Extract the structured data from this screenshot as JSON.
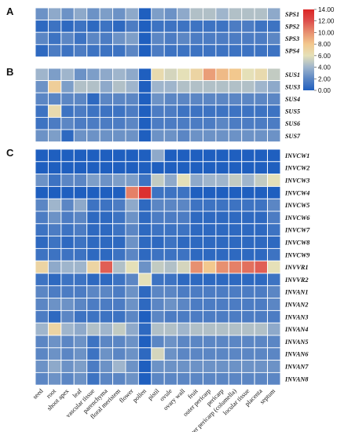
{
  "chart_data": {
    "type": "heatmap",
    "colorscale": {
      "min": 0,
      "max": 14,
      "ticks": [
        "14.00",
        "12.00",
        "10.00",
        "8.00",
        "6.00",
        "4.00",
        "2.00",
        "0.00"
      ],
      "colors": [
        "#1f5fbf",
        "#5b86c4",
        "#9fb5cc",
        "#e5e0b8",
        "#f2c88e",
        "#e79070",
        "#dd4f4c",
        "#dc2626"
      ]
    },
    "tissues": [
      "seed",
      "root",
      "shoot apex",
      "leaf",
      "vascular tissue",
      "parenchyma",
      "floral meristem",
      "flower",
      "pollen",
      "pistil",
      "ovule",
      "ovary wall",
      "fruit",
      "outer pericarp",
      "pericarp",
      "inner pericarp (columella)",
      "locular tissue",
      "placenta",
      "septum"
    ],
    "panels": [
      {
        "label": "A",
        "rows": [
          {
            "gene": "SPS1",
            "values": [
              2.5,
              3.5,
              2.5,
              3.5,
              2.5,
              3.0,
              2.5,
              3.5,
              0.0,
              3.0,
              2.5,
              3.5,
              4.5,
              4.5,
              4.0,
              4.5,
              4.5,
              4.5,
              3.5
            ]
          },
          {
            "gene": "SPS2",
            "values": [
              0.5,
              1.0,
              0.5,
              1.0,
              0.5,
              1.0,
              0.5,
              1.5,
              0.0,
              1.0,
              1.0,
              1.0,
              1.0,
              1.0,
              1.0,
              1.5,
              1.5,
              1.0,
              1.0
            ]
          },
          {
            "gene": "SPS3",
            "values": [
              2.0,
              1.0,
              2.0,
              1.0,
              2.0,
              1.5,
              2.5,
              3.0,
              0.0,
              2.0,
              1.5,
              2.0,
              1.5,
              1.5,
              1.5,
              1.5,
              1.5,
              1.5,
              2.0
            ]
          },
          {
            "gene": "SPS4",
            "values": [
              0.5,
              1.5,
              1.0,
              1.5,
              1.0,
              1.0,
              1.0,
              2.0,
              0.0,
              1.5,
              1.0,
              1.0,
              1.0,
              1.0,
              1.0,
              1.0,
              1.0,
              1.0,
              1.0
            ]
          }
        ]
      },
      {
        "label": "B",
        "rows": [
          {
            "gene": "SUS1",
            "values": [
              4.0,
              3.0,
              4.0,
              2.5,
              3.0,
              3.5,
              4.0,
              3.5,
              0.0,
              6.5,
              5.5,
              6.0,
              7.0,
              9.5,
              8.5,
              8.0,
              6.0,
              6.5,
              5.0
            ]
          },
          {
            "gene": "SUS3",
            "values": [
              2.5,
              7.5,
              3.0,
              4.5,
              4.5,
              3.5,
              4.5,
              4.0,
              0.0,
              4.0,
              4.0,
              4.5,
              4.5,
              4.5,
              4.5,
              4.5,
              4.5,
              4.0,
              3.5
            ]
          },
          {
            "gene": "SUS4",
            "values": [
              2.0,
              2.0,
              2.0,
              2.0,
              0.5,
              2.0,
              2.0,
              2.0,
              0.0,
              2.5,
              2.0,
              2.0,
              2.0,
              2.0,
              2.0,
              2.0,
              2.0,
              2.0,
              2.0
            ]
          },
          {
            "gene": "SUS5",
            "values": [
              1.0,
              6.5,
              1.0,
              1.5,
              1.0,
              1.0,
              1.0,
              1.5,
              0.0,
              1.5,
              1.5,
              1.0,
              1.0,
              1.0,
              1.0,
              1.0,
              1.0,
              1.0,
              1.0
            ]
          },
          {
            "gene": "SUS6",
            "values": [
              1.0,
              1.5,
              2.0,
              1.5,
              1.5,
              1.5,
              1.5,
              2.0,
              0.0,
              1.5,
              1.5,
              1.5,
              1.5,
              1.5,
              2.0,
              1.5,
              1.5,
              1.5,
              1.5
            ]
          },
          {
            "gene": "SUS7",
            "values": [
              2.5,
              3.0,
              0.5,
              2.5,
              2.5,
              2.5,
              2.5,
              2.5,
              0.0,
              2.5,
              2.5,
              2.0,
              2.5,
              2.5,
              2.5,
              2.5,
              2.5,
              2.5,
              2.5
            ]
          }
        ]
      },
      {
        "label": "C",
        "rows": [
          {
            "gene": "INVCW1",
            "values": [
              0.0,
              0.0,
              0.0,
              0.0,
              0.0,
              0.0,
              0.0,
              0.0,
              0.0,
              3.5,
              0.0,
              0.0,
              0.0,
              0.0,
              0.0,
              0.0,
              0.0,
              0.0,
              0.0
            ]
          },
          {
            "gene": "INVCW2",
            "values": [
              0.0,
              0.0,
              0.0,
              0.0,
              0.0,
              0.0,
              0.0,
              0.0,
              0.0,
              0.0,
              0.0,
              0.0,
              0.0,
              0.0,
              0.0,
              0.0,
              0.0,
              0.0,
              0.0
            ]
          },
          {
            "gene": "INVCW3",
            "values": [
              2.5,
              1.0,
              2.0,
              2.0,
              3.0,
              2.5,
              3.0,
              3.0,
              1.0,
              5.0,
              3.5,
              6.0,
              3.5,
              4.0,
              4.0,
              5.0,
              4.0,
              5.0,
              6.0
            ]
          },
          {
            "gene": "INVCW4",
            "values": [
              0.0,
              0.0,
              0.0,
              0.0,
              0.0,
              0.0,
              0.0,
              10.5,
              13.5,
              1.0,
              1.0,
              1.0,
              0.0,
              0.0,
              0.0,
              0.0,
              0.0,
              0.0,
              0.0
            ]
          },
          {
            "gene": "INVCW5",
            "values": [
              2.0,
              4.0,
              2.0,
              3.5,
              1.0,
              1.0,
              1.5,
              3.5,
              0.5,
              2.0,
              2.0,
              2.0,
              1.0,
              1.0,
              1.0,
              1.0,
              1.0,
              1.0,
              2.0
            ]
          },
          {
            "gene": "INVCW6",
            "values": [
              1.5,
              2.5,
              1.5,
              2.0,
              0.5,
              0.5,
              1.0,
              2.5,
              0.5,
              1.5,
              1.5,
              1.5,
              0.5,
              0.5,
              0.5,
              0.5,
              0.5,
              0.5,
              1.5
            ]
          },
          {
            "gene": "INVCW7",
            "values": [
              1.0,
              1.5,
              1.0,
              1.5,
              0.5,
              0.5,
              1.0,
              2.0,
              0.5,
              1.0,
              1.0,
              1.0,
              0.5,
              0.5,
              0.5,
              0.5,
              0.5,
              0.5,
              1.0
            ]
          },
          {
            "gene": "INVCW8",
            "values": [
              0.5,
              1.0,
              0.5,
              1.0,
              0.5,
              0.5,
              0.5,
              2.5,
              0.5,
              0.5,
              1.0,
              0.5,
              0.5,
              0.5,
              0.5,
              0.5,
              0.5,
              0.5,
              0.5
            ]
          },
          {
            "gene": "INVCW9",
            "values": [
              1.0,
              1.0,
              1.0,
              1.0,
              0.5,
              0.5,
              1.0,
              2.0,
              0.5,
              1.0,
              1.0,
              1.0,
              0.5,
              0.5,
              0.5,
              0.5,
              0.5,
              0.5,
              1.0
            ]
          },
          {
            "gene": "INVVR1",
            "values": [
              7.0,
              3.5,
              4.0,
              4.0,
              7.0,
              11.5,
              4.5,
              6.0,
              2.5,
              5.0,
              4.5,
              5.5,
              10.0,
              8.0,
              10.0,
              10.5,
              11.0,
              11.5,
              6.0
            ]
          },
          {
            "gene": "INVVR2",
            "values": [
              1.0,
              0.5,
              1.0,
              1.0,
              0.5,
              0.5,
              1.0,
              2.0,
              6.0,
              1.0,
              1.0,
              0.5,
              0.5,
              0.5,
              0.5,
              0.5,
              0.5,
              0.5,
              1.0
            ]
          },
          {
            "gene": "INVAN1",
            "values": [
              2.0,
              1.5,
              1.5,
              1.5,
              2.0,
              2.0,
              1.5,
              2.5,
              0.5,
              2.0,
              2.0,
              1.5,
              1.5,
              1.5,
              1.5,
              1.5,
              1.5,
              1.5,
              2.0
            ]
          },
          {
            "gene": "INVAN2",
            "values": [
              2.0,
              2.5,
              2.5,
              2.0,
              1.5,
              1.5,
              1.5,
              2.5,
              0.5,
              2.0,
              2.5,
              2.0,
              1.5,
              1.5,
              1.5,
              1.5,
              1.5,
              1.5,
              2.0
            ]
          },
          {
            "gene": "INVAN3",
            "values": [
              1.5,
              0.5,
              2.0,
              1.0,
              1.0,
              1.0,
              1.0,
              2.0,
              0.0,
              2.0,
              1.5,
              1.5,
              1.5,
              1.5,
              1.5,
              1.5,
              1.5,
              1.5,
              1.5
            ]
          },
          {
            "gene": "INVAN4",
            "values": [
              4.0,
              7.0,
              4.0,
              3.5,
              4.5,
              4.0,
              5.0,
              3.5,
              0.5,
              4.5,
              4.5,
              4.0,
              4.5,
              4.5,
              4.5,
              4.5,
              4.5,
              4.5,
              3.5
            ]
          },
          {
            "gene": "INVAN5",
            "values": [
              2.0,
              2.5,
              2.0,
              2.5,
              1.0,
              2.0,
              2.0,
              2.5,
              0.0,
              2.0,
              2.5,
              2.0,
              2.0,
              2.0,
              2.0,
              2.0,
              2.0,
              2.0,
              2.0
            ]
          },
          {
            "gene": "INVAN6",
            "values": [
              2.0,
              2.5,
              2.0,
              2.5,
              1.0,
              2.5,
              2.0,
              2.5,
              0.5,
              5.5,
              2.5,
              2.0,
              2.0,
              2.0,
              2.0,
              2.0,
              2.0,
              2.0,
              2.0
            ]
          },
          {
            "gene": "INVAN7",
            "values": [
              2.5,
              3.5,
              2.5,
              3.0,
              1.5,
              2.5,
              4.0,
              2.5,
              0.0,
              2.5,
              2.5,
              2.5,
              2.5,
              2.5,
              2.5,
              2.5,
              2.5,
              2.5,
              2.5
            ]
          },
          {
            "gene": "INVAN8",
            "values": [
              2.0,
              2.5,
              2.0,
              2.5,
              1.0,
              2.0,
              2.0,
              2.5,
              0.0,
              2.0,
              2.0,
              2.0,
              2.0,
              2.0,
              2.0,
              2.0,
              2.0,
              2.0,
              2.0
            ]
          }
        ]
      }
    ]
  }
}
